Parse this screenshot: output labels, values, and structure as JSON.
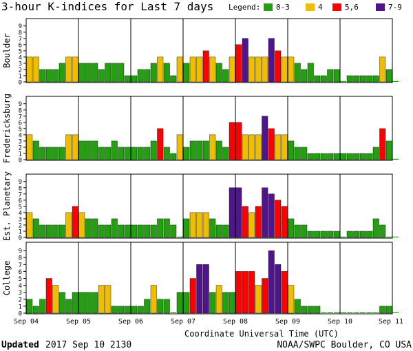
{
  "title": "3-hour K-indices for Last 7 days",
  "legend": {
    "label": "Legend:",
    "items": [
      {
        "name": "0-3",
        "color": "#22a00f"
      },
      {
        "name": "4",
        "color": "#f0be00"
      },
      {
        "name": "5,6",
        "color": "#ff0000"
      },
      {
        "name": "7-9",
        "color": "#50148c"
      }
    ]
  },
  "xlabel": "Coordinate Universal Time (UTC)",
  "footer": {
    "updated_label": "Updated",
    "updated_value": "2017 Sep 10 2130",
    "credit": "NOAA/SWPC Boulder, CO USA"
  },
  "chart_data": {
    "type": "bar",
    "x_tick_labels": [
      "Sep 04",
      "Sep 05",
      "Sep 06",
      "Sep 07",
      "Sep 08",
      "Sep 09",
      "Sep 10",
      "Sep 11"
    ],
    "ylim": [
      0,
      9
    ],
    "y_ticks": [
      0,
      1,
      2,
      3,
      4,
      5,
      6,
      7,
      8,
      9
    ],
    "bins_per_day": 8,
    "series": [
      {
        "name": "Boulder",
        "values": [
          4,
          4,
          2,
          2,
          2,
          3,
          4,
          4,
          3,
          3,
          3,
          2,
          3,
          3,
          3,
          1,
          1,
          2,
          2,
          3,
          4,
          3,
          1,
          4,
          3,
          4,
          4,
          5,
          4,
          3,
          2,
          4,
          6,
          7,
          4,
          4,
          4,
          7,
          5,
          4,
          4,
          3,
          2,
          3,
          1,
          1,
          2,
          2,
          0,
          1,
          1,
          1,
          1,
          1,
          4,
          2,
          0
        ]
      },
      {
        "name": "Fredericksburg",
        "values": [
          4,
          3,
          2,
          2,
          2,
          2,
          4,
          4,
          3,
          3,
          3,
          2,
          2,
          3,
          2,
          2,
          2,
          2,
          2,
          3,
          5,
          2,
          1,
          4,
          2,
          3,
          3,
          3,
          4,
          3,
          2,
          6,
          6,
          4,
          4,
          4,
          7,
          5,
          4,
          4,
          3,
          2,
          2,
          1,
          1,
          1,
          1,
          1,
          1,
          1,
          1,
          1,
          1,
          2,
          5,
          3,
          0
        ]
      },
      {
        "name": "Est. Planetary",
        "values": [
          4,
          3,
          2,
          2,
          2,
          2,
          4,
          5,
          4,
          3,
          3,
          2,
          2,
          3,
          2,
          2,
          2,
          2,
          2,
          2,
          3,
          3,
          2,
          0,
          3,
          4,
          4,
          4,
          3,
          2,
          2,
          8,
          8,
          5,
          4,
          5,
          8,
          7,
          6,
          5,
          3,
          2,
          2,
          1,
          1,
          1,
          1,
          1,
          0,
          1,
          1,
          1,
          1,
          3,
          2,
          0,
          0
        ]
      },
      {
        "name": "College",
        "values": [
          2,
          1,
          2,
          5,
          4,
          3,
          2,
          3,
          3,
          3,
          3,
          4,
          4,
          1,
          1,
          1,
          1,
          1,
          2,
          4,
          2,
          2,
          0,
          3,
          3,
          5,
          7,
          7,
          3,
          4,
          3,
          3,
          6,
          6,
          6,
          4,
          5,
          9,
          7,
          6,
          4,
          2,
          1,
          1,
          1,
          0,
          0,
          0,
          0,
          0,
          0,
          0,
          0,
          0,
          1,
          1,
          0
        ]
      }
    ]
  }
}
